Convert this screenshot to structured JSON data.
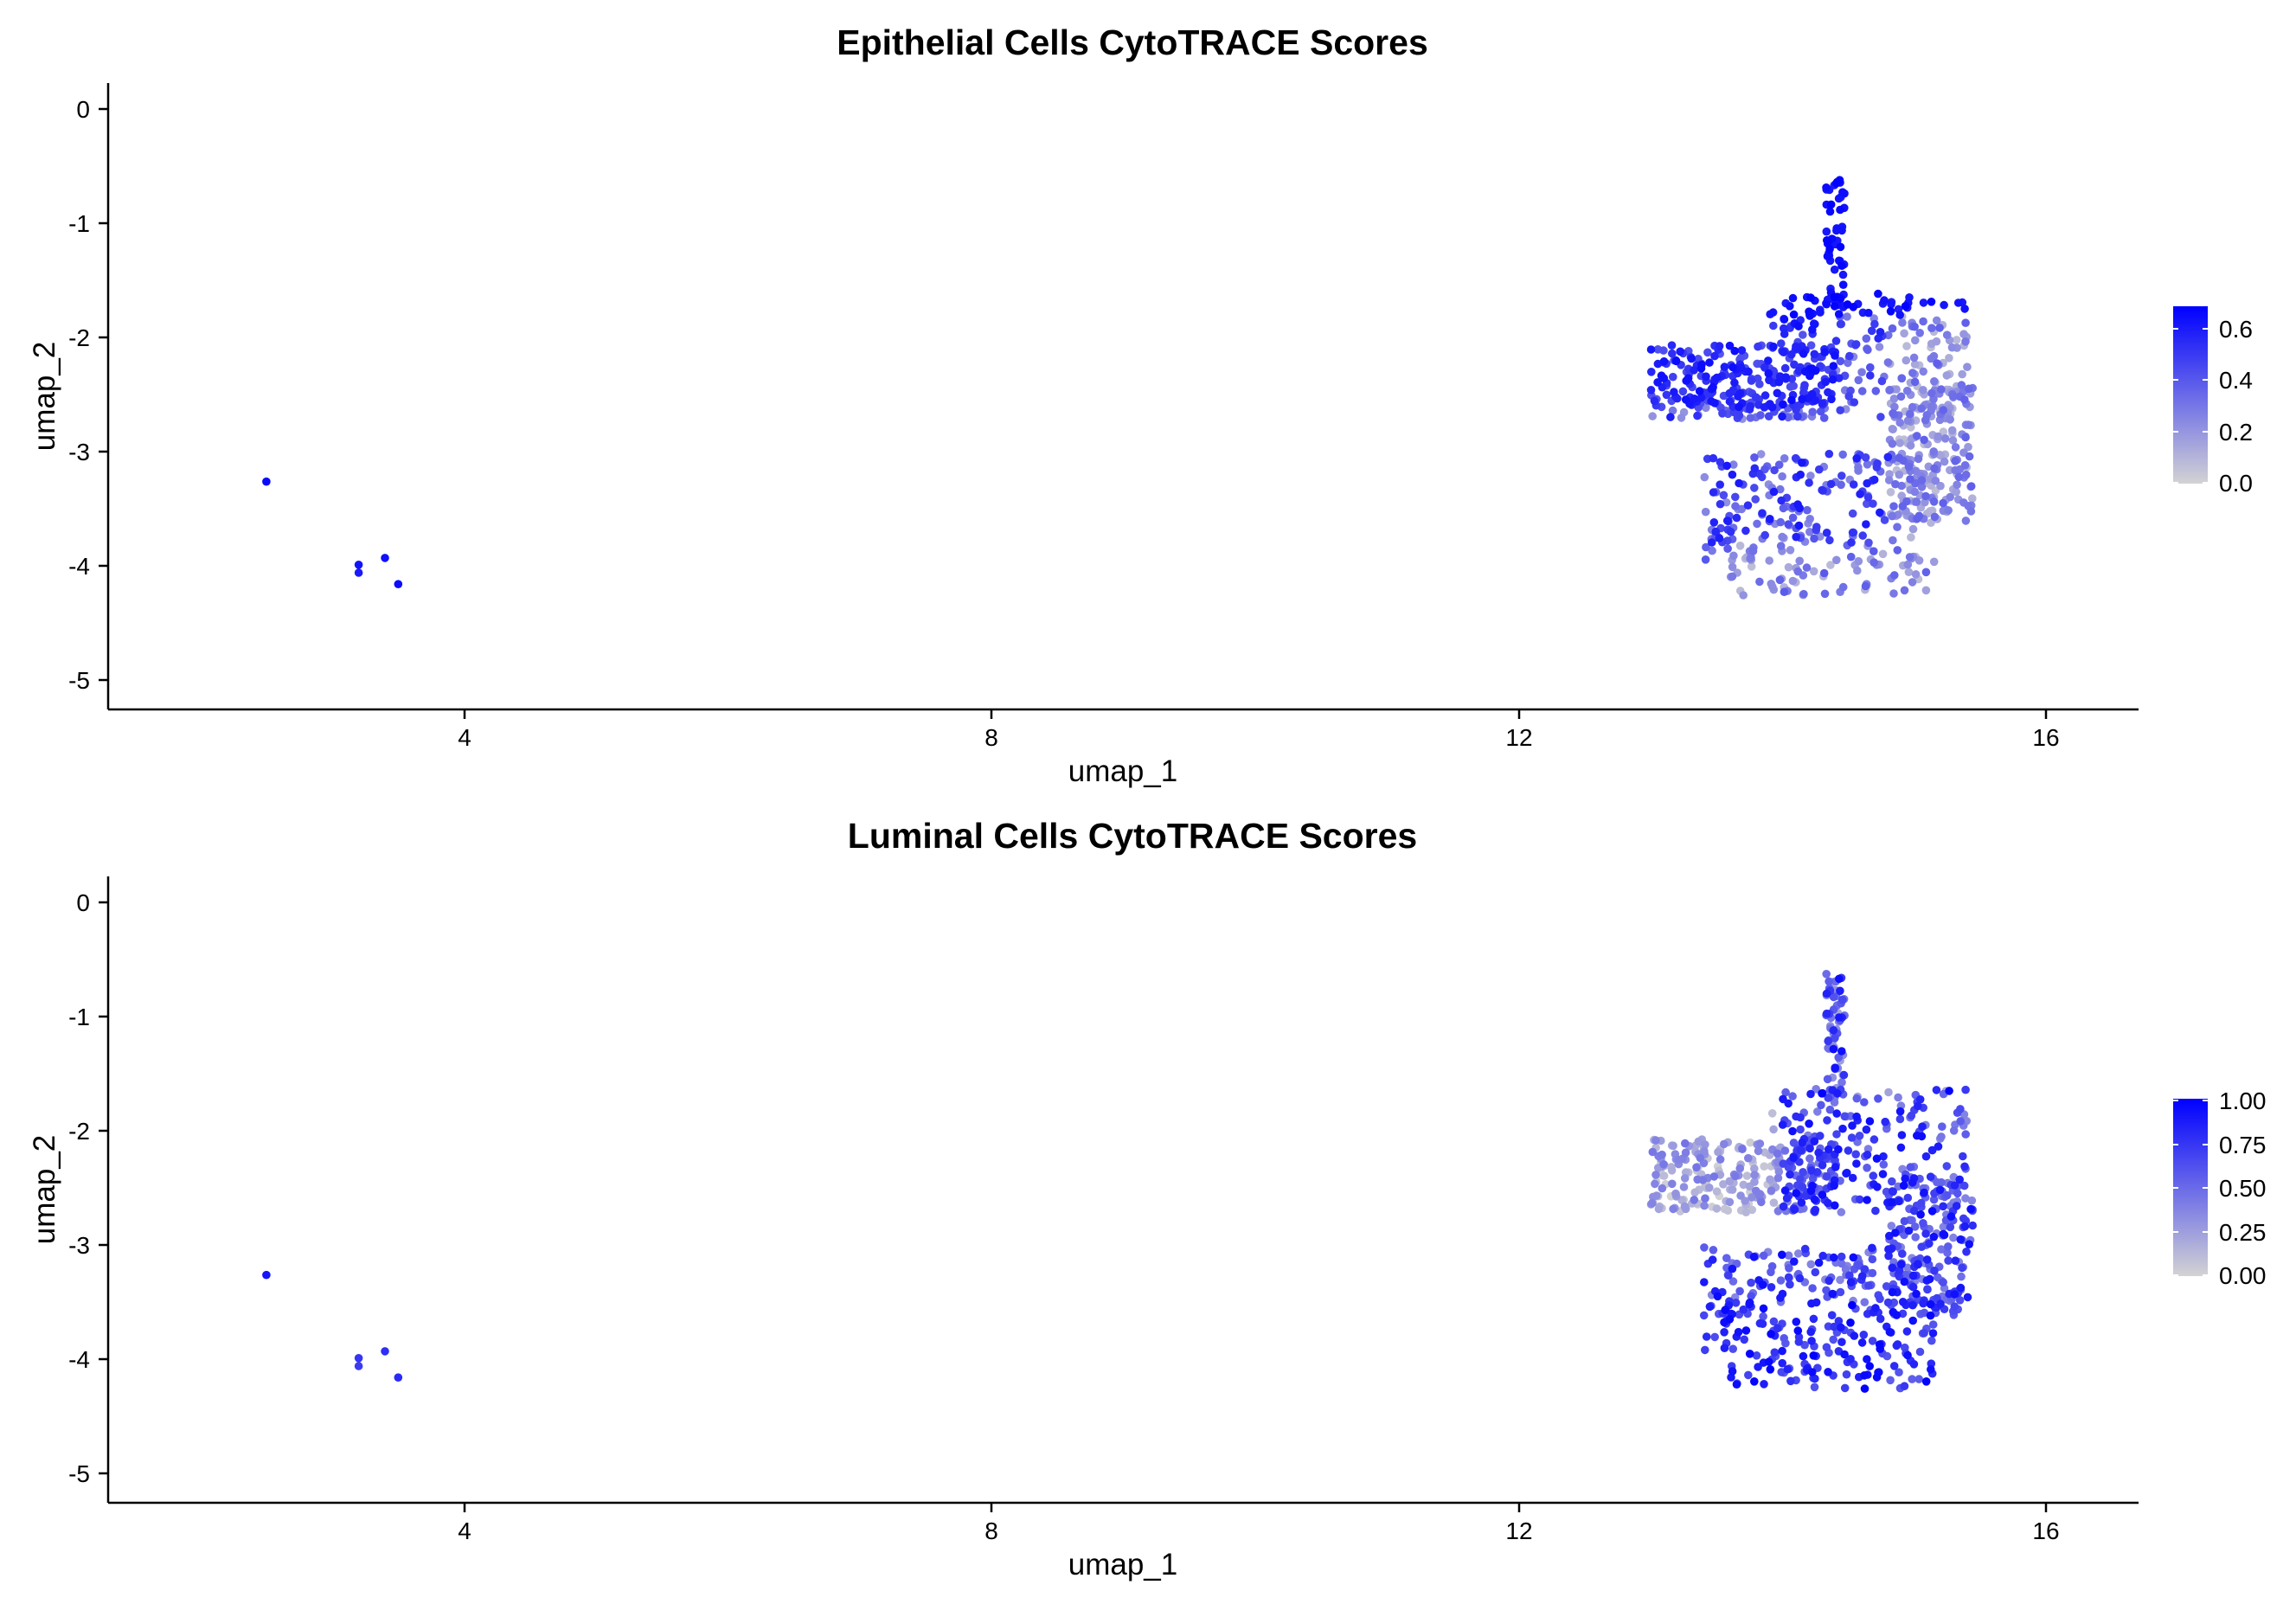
{
  "chart_data": [
    {
      "type": "scatter",
      "title": "Epithelial Cells CytoTRACE Scores",
      "xlabel": "umap_1",
      "ylabel": "umap_2",
      "xlim": [
        1.3,
        16.7
      ],
      "ylim": [
        -5.25,
        0.25
      ],
      "xticks": [
        4,
        8,
        12,
        16
      ],
      "yticks": [
        0,
        -1,
        -2,
        -3,
        -4,
        -5
      ],
      "grid": false,
      "legend": {
        "placement": "right",
        "type": "colorbar",
        "min": 0,
        "max": 0.68,
        "ticks": [
          0.0,
          0.2,
          0.4,
          0.6
        ],
        "tick_labels": [
          "0.0",
          "0.2",
          "0.4",
          "0.6"
        ],
        "low_color": "#d3d3d3",
        "high_color": "#0000ff"
      },
      "points_small_cluster": [
        {
          "x": 2.5,
          "y": -3.25,
          "score": 0.65
        },
        {
          "x": 3.2,
          "y": -3.98,
          "score": 0.62
        },
        {
          "x": 3.2,
          "y": -4.05,
          "score": 0.6
        },
        {
          "x": 3.4,
          "y": -3.92,
          "score": 0.63
        },
        {
          "x": 3.5,
          "y": -4.15,
          "score": 0.64
        }
      ],
      "large_cluster": {
        "x_range": [
          13.0,
          15.5
        ],
        "y_range": [
          -4.3,
          -0.5
        ],
        "approx_point_count": 1000,
        "score_range": [
          0.0,
          0.68
        ],
        "pattern": "high scores in top stem (y -0.5 to -1.8) and upper region; low scores along lower-right"
      }
    },
    {
      "type": "scatter",
      "title": "Luminal Cells CytoTRACE Scores",
      "xlabel": "umap_1",
      "ylabel": "umap_2",
      "xlim": [
        1.3,
        16.7
      ],
      "ylim": [
        -5.25,
        0.25
      ],
      "xticks": [
        4,
        8,
        12,
        16
      ],
      "yticks": [
        0,
        -1,
        -2,
        -3,
        -4,
        -5
      ],
      "grid": false,
      "legend": {
        "placement": "right",
        "type": "colorbar",
        "min": 0,
        "max": 1.0,
        "ticks": [
          0.0,
          0.25,
          0.5,
          0.75,
          1.0
        ],
        "tick_labels": [
          "0.00",
          "0.25",
          "0.50",
          "0.75",
          "1.00"
        ],
        "low_color": "#d3d3d3",
        "high_color": "#0000ff"
      },
      "points_small_cluster": [
        {
          "x": 2.5,
          "y": -3.25,
          "score": 0.9
        },
        {
          "x": 3.2,
          "y": -3.98,
          "score": 0.75
        },
        {
          "x": 3.2,
          "y": -4.05,
          "score": 0.72
        },
        {
          "x": 3.4,
          "y": -3.92,
          "score": 0.78
        },
        {
          "x": 3.5,
          "y": -4.15,
          "score": 0.8
        }
      ],
      "large_cluster": {
        "x_range": [
          13.0,
          15.5
        ],
        "y_range": [
          -4.3,
          -0.5
        ],
        "approx_point_count": 1000,
        "score_range": [
          0.0,
          1.0
        ],
        "pattern": "low scores in upper-left arm (y -2 to -2.6); high scores in lower region"
      }
    }
  ]
}
